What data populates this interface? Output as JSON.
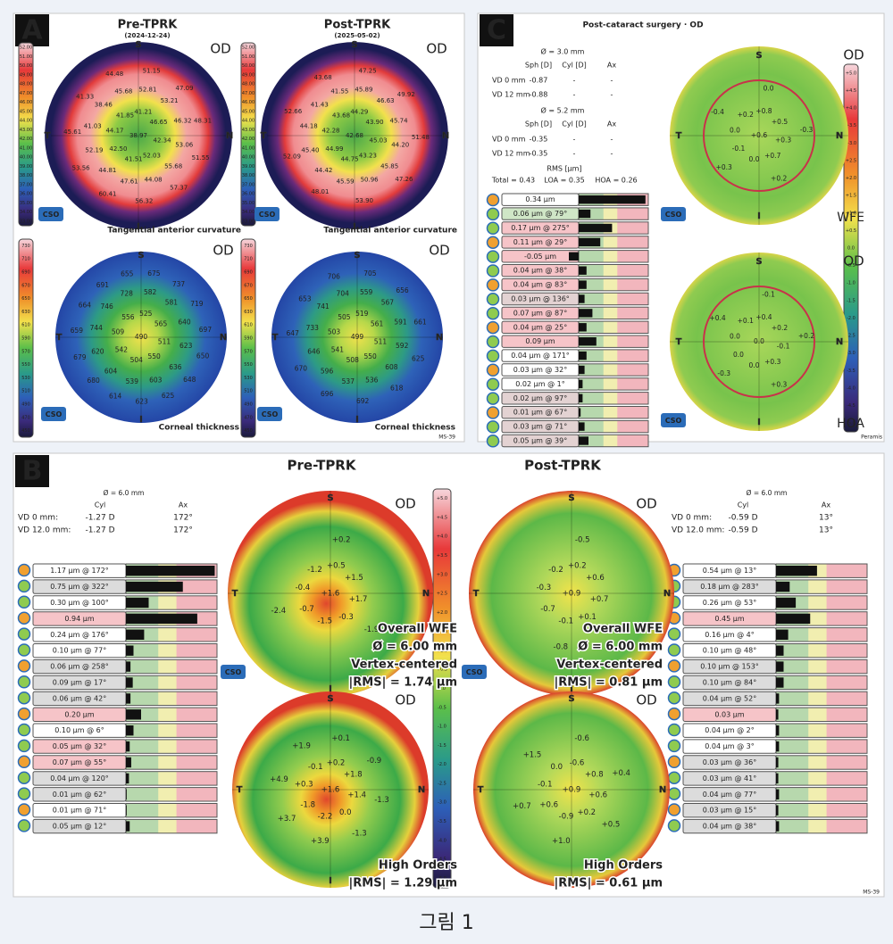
{
  "panel_a": {
    "label": "A",
    "logo": "CSO",
    "device": "MS-39",
    "pre": {
      "title": "Pre-TPRK",
      "date": "(2024-12-24)"
    },
    "post": {
      "title": "Post-TPRK",
      "date": "(2025-05-02)"
    },
    "curvature_scale": [
      "52.00",
      "51.00",
      "50.00",
      "49.00",
      "48.00",
      "47.00",
      "46.00",
      "45.00",
      "44.00",
      "43.00",
      "42.00",
      "41.00",
      "40.00",
      "39.00",
      "38.00",
      "37.00",
      "36.00",
      "35.00",
      "34.00",
      "33.00"
    ],
    "thickness_scale": [
      "730",
      "710",
      "690",
      "670",
      "650",
      "630",
      "610",
      "590",
      "570",
      "550",
      "530",
      "510",
      "490",
      "470",
      "450"
    ],
    "maps": [
      {
        "eye": "OD",
        "caption": "Tangential anterior curvature",
        "orientation": [
          "S",
          "T",
          "N",
          "I"
        ],
        "values": [
          "38.97",
          "41.21",
          "46.65",
          "42.34",
          "52.03",
          "41.51",
          "42.50",
          "44.17",
          "41.85",
          "52.81",
          "53.21",
          "46.32",
          "53.06",
          "55.68",
          "44.08",
          "47.61",
          "44.81",
          "52.19",
          "41.03",
          "38.46",
          "45.68",
          "51.15",
          "47.09",
          "48.31",
          "51.55",
          "57.37",
          "56.32",
          "60.41",
          "53.56",
          "45.61",
          "41.33",
          "44.48"
        ]
      },
      {
        "eye": "OD",
        "caption": "Tangential anterior curvature",
        "orientation": [
          "S",
          "T",
          "N",
          "I"
        ],
        "values": [
          "42.68",
          "44.29",
          "43.90",
          "45.03",
          "43.23",
          "44.75",
          "44.99",
          "42.28",
          "43.68",
          "45.89",
          "46.63",
          "45.74",
          "44.20",
          "45.85",
          "50.96",
          "45.59",
          "44.42",
          "45.40",
          "44.18",
          "41.43",
          "41.55",
          "47.25",
          "49.92",
          "51.48",
          "47.26",
          "53.90",
          "48.01",
          "52.09",
          "52.66",
          "43.68"
        ]
      },
      {
        "eye": "OD",
        "caption": "Corneal thickness",
        "orientation": [
          "S",
          "T",
          "N",
          "I"
        ],
        "values": [
          "490",
          "525",
          "565",
          "511",
          "550",
          "504",
          "542",
          "509",
          "556",
          "582",
          "581",
          "640",
          "623",
          "636",
          "603",
          "539",
          "604",
          "620",
          "744",
          "746",
          "728",
          "675",
          "737",
          "719",
          "697",
          "650",
          "648",
          "625",
          "623",
          "614",
          "680",
          "679",
          "659",
          "664",
          "691",
          "655"
        ]
      },
      {
        "eye": "OD",
        "caption": "Corneal thickness",
        "orientation": [
          "S",
          "T",
          "N",
          "I"
        ],
        "values": [
          "499",
          "519",
          "561",
          "511",
          "550",
          "508",
          "541",
          "503",
          "505",
          "559",
          "567",
          "591",
          "592",
          "608",
          "536",
          "537",
          "596",
          "646",
          "733",
          "741",
          "704",
          "705",
          "656",
          "661",
          "625",
          "618",
          "692",
          "696",
          "670",
          "647",
          "653",
          "706"
        ]
      }
    ]
  },
  "panel_c": {
    "label": "C",
    "logo": "CSO",
    "title": "Post-cataract surgery · OD",
    "device": "Peramis",
    "zones": [
      {
        "diameter": "Ø = 3.0 mm",
        "headers": [
          "Sph [D]",
          "Cyl [D]",
          "Ax"
        ],
        "rows": [
          [
            "VD 0 mm",
            "-0.87",
            "-",
            "-"
          ],
          [
            "VD 12 mm",
            "-0.88",
            "-",
            "-"
          ]
        ]
      },
      {
        "diameter": "Ø = 5.2 mm",
        "headers": [
          "Sph [D]",
          "Cyl [D]",
          "Ax"
        ],
        "rows": [
          [
            "VD 0 mm",
            "-0.35",
            "-",
            "-"
          ],
          [
            "VD 12 mm",
            "-0.35",
            "-",
            "-"
          ]
        ]
      }
    ],
    "rms": {
      "title": "RMS [μm]",
      "items": [
        "Total = 0.43",
        "LOA = 0.35",
        "HOA = 0.26"
      ]
    },
    "zernike": [
      {
        "value": 0.34,
        "label": "0.34 μm",
        "color": "#ffffff"
      },
      {
        "value": 0.06,
        "label": "0.06 μm @ 79°",
        "color": "#cfe6c6"
      },
      {
        "value": 0.17,
        "label": "0.17 μm @ 275°",
        "color": "#f6c4c8"
      },
      {
        "value": 0.11,
        "label": "0.11 μm @ 29°",
        "color": "#f6c4c8"
      },
      {
        "value": -0.05,
        "label": "-0.05 μm",
        "color": "#f6c4c8"
      },
      {
        "value": 0.04,
        "label": "0.04 μm @ 38°",
        "color": "#f6c4c8"
      },
      {
        "value": 0.04,
        "label": "0.04 μm @ 83°",
        "color": "#f6c4c8"
      },
      {
        "value": 0.03,
        "label": "0.03 μm @ 136°",
        "color": "#e3d2d2"
      },
      {
        "value": 0.07,
        "label": "0.07 μm @ 87°",
        "color": "#f6c4c8"
      },
      {
        "value": 0.04,
        "label": "0.04 μm @ 25°",
        "color": "#f6c4c8"
      },
      {
        "value": 0.09,
        "label": "0.09 μm",
        "color": "#f6c4c8"
      },
      {
        "value": 0.04,
        "label": "0.04 μm @ 171°",
        "color": "#ffffff"
      },
      {
        "value": 0.03,
        "label": "0.03 μm @ 32°",
        "color": "#ffffff"
      },
      {
        "value": 0.02,
        "label": "0.02 μm @ 1°",
        "color": "#ffffff"
      },
      {
        "value": 0.02,
        "label": "0.02 μm @ 97°",
        "color": "#e3d2d2"
      },
      {
        "value": 0.01,
        "label": "0.01 μm @ 67°",
        "color": "#e3d2d2"
      },
      {
        "value": 0.03,
        "label": "0.03 μm @ 71°",
        "color": "#e3d2d2"
      },
      {
        "value": 0.05,
        "label": "0.05 μm @ 39°",
        "color": "#e3d2d2"
      }
    ],
    "scale": [
      "+5.0",
      "+4.5",
      "+4.0",
      "+3.5",
      "+3.0",
      "+2.5",
      "+2.0",
      "+1.5",
      "+1.0",
      "+0.5",
      "0.0",
      "-0.5",
      "-1.0",
      "-1.5",
      "-2.0",
      "-2.5",
      "-3.0",
      "-3.5",
      "-4.0",
      "-4.5",
      "-5.0"
    ],
    "maps": [
      {
        "eye": "OD",
        "caption": "WFE",
        "orientation": [
          "S",
          "T",
          "N",
          "I"
        ],
        "values": [
          "+0.6",
          "+0.8",
          "+0.5",
          "+0.3",
          "+0.7",
          "0.0",
          "-0.1",
          "0.0",
          "+0.2",
          "0.0",
          "-0.3",
          "+0.2",
          "+0.3",
          "-0.4"
        ]
      },
      {
        "eye": "OD",
        "caption": "HOA",
        "orientation": [
          "S",
          "T",
          "N",
          "I"
        ],
        "values": [
          "0.0",
          "+0.4",
          "+0.2",
          "-0.1",
          "+0.3",
          "0.0",
          "0.0",
          "0.0",
          "+0.1",
          "-0.1",
          "+0.2",
          "+0.3",
          "-0.3",
          "+0.4"
        ]
      }
    ]
  },
  "panel_b": {
    "label": "B",
    "logo": "CSO",
    "device": "MS-39",
    "scale": [
      "+5.0",
      "+4.5",
      "+4.0",
      "+3.5",
      "+3.0",
      "+2.5",
      "+2.0",
      "+1.5",
      "+1.0",
      "+0.5",
      "0.0",
      "-0.5",
      "-1.0",
      "-1.5",
      "-2.0",
      "-2.5",
      "-3.0",
      "-3.5",
      "-4.0",
      "-4.5",
      "-5.0"
    ],
    "pre": {
      "title": "Pre-TPRK",
      "table": {
        "diameter": "Ø = 6.0 mm",
        "headers": [
          "Cyl",
          "Ax"
        ],
        "rows": [
          [
            "VD 0 mm:",
            "-1.27 D",
            "172°"
          ],
          [
            "VD 12.0 mm:",
            "-1.27 D",
            "172°"
          ]
        ]
      },
      "zernike": [
        {
          "value": 1.17,
          "label": "1.17 μm @ 172°",
          "color": "#ffffff"
        },
        {
          "value": 0.75,
          "label": "0.75 μm @ 322°",
          "color": "#dcdcdc"
        },
        {
          "value": 0.3,
          "label": "0.30 μm @ 100°",
          "color": "#ffffff"
        },
        {
          "value": 0.94,
          "label": "0.94 μm",
          "color": "#f6c4c8"
        },
        {
          "value": 0.24,
          "label": "0.24 μm @ 176°",
          "color": "#ffffff"
        },
        {
          "value": 0.1,
          "label": "0.10 μm @ 77°",
          "color": "#ffffff"
        },
        {
          "value": 0.06,
          "label": "0.06 μm @ 258°",
          "color": "#dcdcdc"
        },
        {
          "value": 0.09,
          "label": "0.09 μm @ 17°",
          "color": "#dcdcdc"
        },
        {
          "value": 0.06,
          "label": "0.06 μm @ 42°",
          "color": "#dcdcdc"
        },
        {
          "value": 0.2,
          "label": "0.20 μm",
          "color": "#f6c4c8"
        },
        {
          "value": 0.1,
          "label": "0.10 μm @ 6°",
          "color": "#ffffff"
        },
        {
          "value": 0.05,
          "label": "0.05 μm @ 32°",
          "color": "#f6c4c8"
        },
        {
          "value": 0.07,
          "label": "0.07 μm @ 55°",
          "color": "#f6c4c8"
        },
        {
          "value": 0.04,
          "label": "0.04 μm @ 120°",
          "color": "#dcdcdc"
        },
        {
          "value": 0.01,
          "label": "0.01 μm @ 62°",
          "color": "#dcdcdc"
        },
        {
          "value": 0.01,
          "label": "0.01 μm @ 71°",
          "color": "#ffffff"
        },
        {
          "value": 0.05,
          "label": "0.05 μm @ 12°",
          "color": "#dcdcdc"
        }
      ],
      "maps": [
        {
          "eye": "OD",
          "orientation": [
            "S",
            "T",
            "N",
            "I"
          ],
          "values": [
            "+1.6",
            "+0.5",
            "+1.5",
            "+1.7",
            "-0.3",
            "-1.5",
            "-0.7",
            "-0.4",
            "-1.2",
            "+0.2",
            "-1.9",
            "-2.4"
          ],
          "notes": [
            "Overall WFE",
            "Ø = 6.00 mm",
            "Vertex-centered",
            "|RMS| = 1.74 μm"
          ]
        },
        {
          "eye": "OD",
          "orientation": [
            "S",
            "T",
            "N",
            "I"
          ],
          "values": [
            "+1.6",
            "+0.2",
            "+1.8",
            "+1.4",
            "0.0",
            "-2.2",
            "-1.8",
            "+0.3",
            "-0.1",
            "+0.1",
            "-0.9",
            "-1.3",
            "-1.3",
            "+3.9",
            "+3.7",
            "+4.9",
            "+1.9"
          ],
          "notes": [
            "High Orders",
            "|RMS| = 1.29 μm"
          ]
        }
      ]
    },
    "post": {
      "title": "Post-TPRK",
      "table": {
        "diameter": "Ø = 6.0 mm",
        "headers": [
          "Cyl",
          "Ax"
        ],
        "rows": [
          [
            "VD 0 mm:",
            "-0.59 D",
            "13°"
          ],
          [
            "VD 12.0 mm:",
            "-0.59 D",
            "13°"
          ]
        ]
      },
      "zernike": [
        {
          "value": 0.54,
          "label": "0.54 μm @ 13°",
          "color": "#ffffff"
        },
        {
          "value": 0.18,
          "label": "0.18 μm @ 283°",
          "color": "#dcdcdc"
        },
        {
          "value": 0.26,
          "label": "0.26 μm @ 53°",
          "color": "#ffffff"
        },
        {
          "value": 0.45,
          "label": "0.45 μm",
          "color": "#f6c4c8"
        },
        {
          "value": 0.16,
          "label": "0.16 μm @ 4°",
          "color": "#ffffff"
        },
        {
          "value": 0.1,
          "label": "0.10 μm @ 48°",
          "color": "#ffffff"
        },
        {
          "value": 0.1,
          "label": "0.10 μm @ 153°",
          "color": "#dcdcdc"
        },
        {
          "value": 0.1,
          "label": "0.10 μm @ 84°",
          "color": "#dcdcdc"
        },
        {
          "value": 0.04,
          "label": "0.04 μm @ 52°",
          "color": "#dcdcdc"
        },
        {
          "value": 0.03,
          "label": "0.03 μm",
          "color": "#f6c4c8"
        },
        {
          "value": 0.04,
          "label": "0.04 μm @ 2°",
          "color": "#ffffff"
        },
        {
          "value": 0.04,
          "label": "0.04 μm @ 3°",
          "color": "#ffffff"
        },
        {
          "value": 0.03,
          "label": "0.03 μm @ 36°",
          "color": "#dcdcdc"
        },
        {
          "value": 0.03,
          "label": "0.03 μm @ 41°",
          "color": "#dcdcdc"
        },
        {
          "value": 0.04,
          "label": "0.04 μm @ 77°",
          "color": "#dcdcdc"
        },
        {
          "value": 0.03,
          "label": "0.03 μm @ 15°",
          "color": "#dcdcdc"
        },
        {
          "value": 0.04,
          "label": "0.04 μm @ 38°",
          "color": "#dcdcdc"
        }
      ],
      "maps": [
        {
          "eye": "OD",
          "orientation": [
            "S",
            "T",
            "N",
            "I"
          ],
          "values": [
            "+0.9",
            "+0.2",
            "+0.6",
            "+0.7",
            "+0.1",
            "-0.1",
            "-0.7",
            "-0.3",
            "-0.2",
            "-0.5",
            "-0.8"
          ],
          "notes": [
            "Overall WFE",
            "Ø = 6.00 mm",
            "Vertex-centered",
            "|RMS| = 0.81 μm"
          ]
        },
        {
          "eye": "OD",
          "orientation": [
            "S",
            "T",
            "N",
            "I"
          ],
          "values": [
            "+0.9",
            "-0.6",
            "+0.8",
            "+0.6",
            "+0.2",
            "-0.9",
            "+0.6",
            "-0.1",
            "0.0",
            "-0.6",
            "+0.4",
            "+0.5",
            "+1.0",
            "+0.7",
            "+1.5"
          ],
          "notes": [
            "High Orders",
            "|RMS| = 0.61 μm"
          ]
        }
      ]
    }
  },
  "caption": "그림 1"
}
